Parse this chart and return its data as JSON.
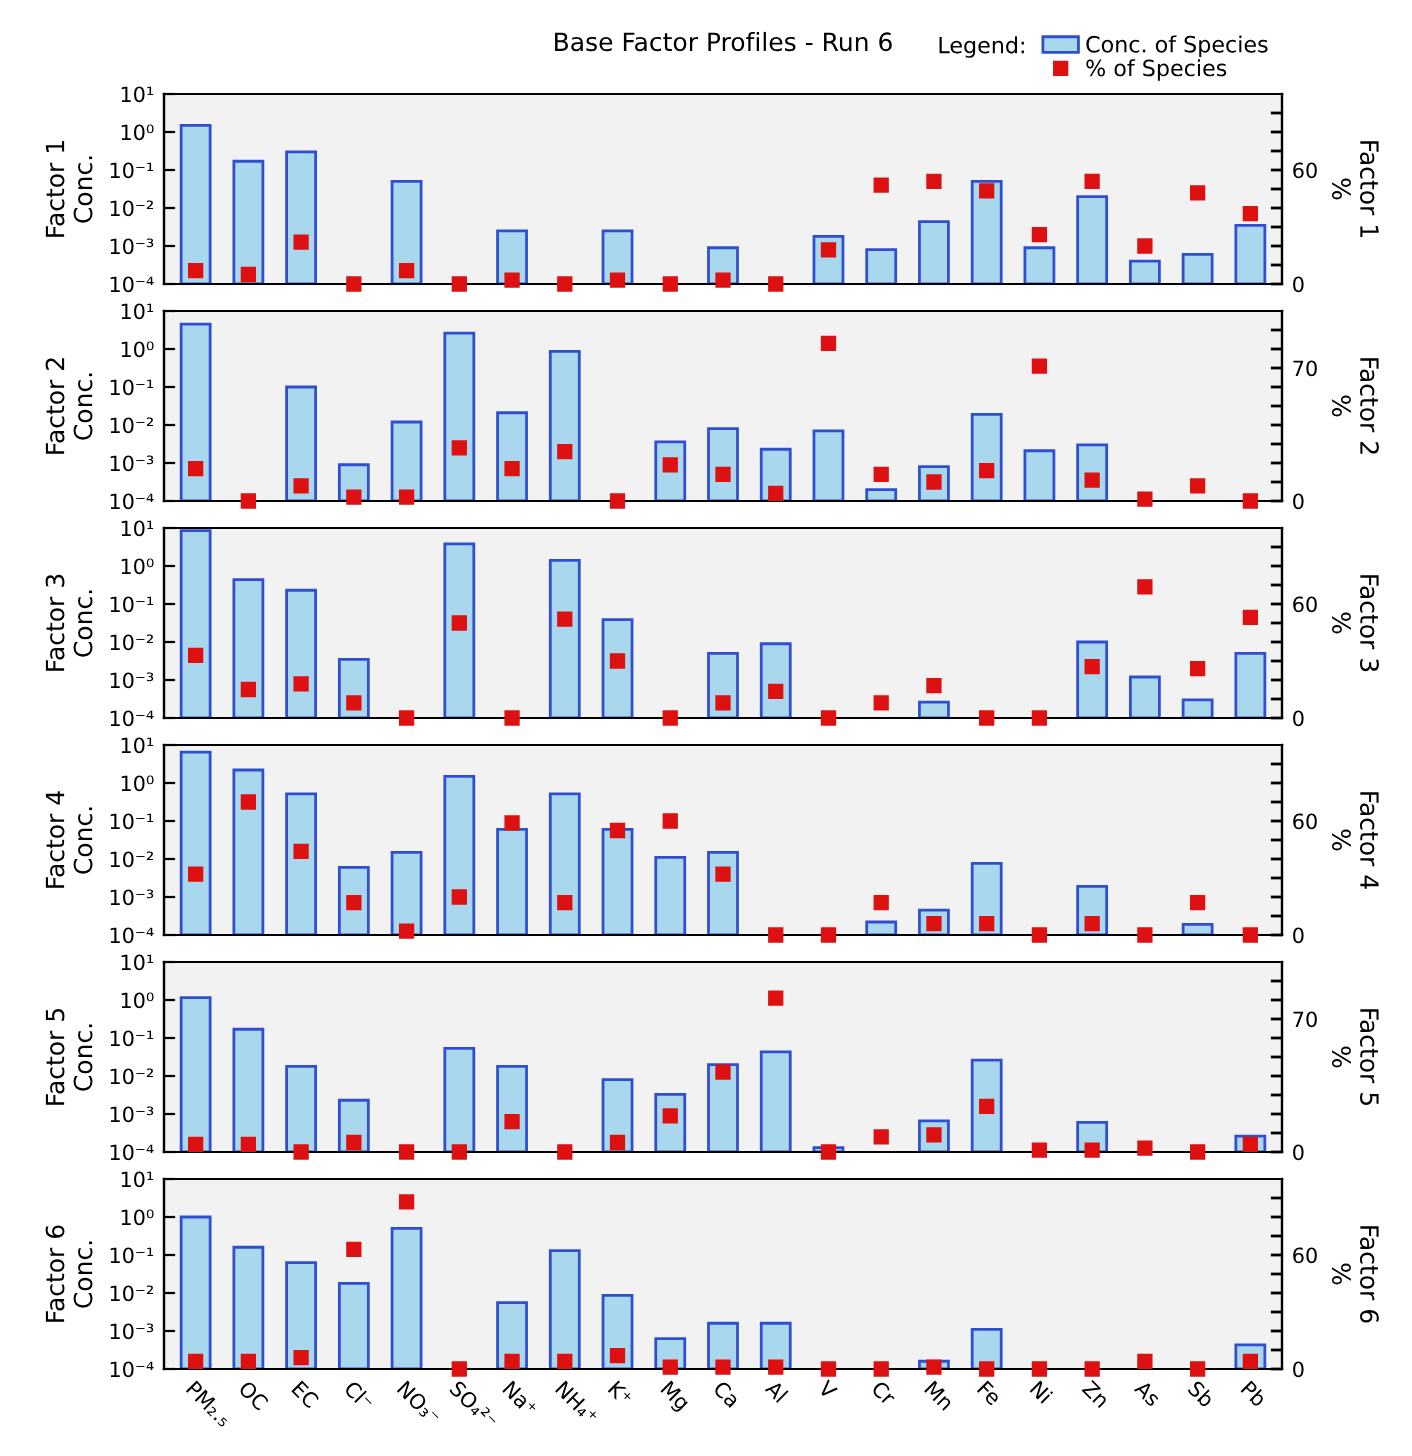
{
  "chart_data": [
    {
      "type": "bar",
      "title": "Base Factor Profiles - Run 6",
      "legend_title": "Legend:",
      "legend": "top right",
      "ylabel": "Factor 1\nConc.",
      "y2label": "Factor 1\n%",
      "log": "y",
      "categories": [
        null,
        null,
        null,
        null,
        null,
        null,
        null,
        null,
        null,
        null,
        null,
        null,
        null,
        null,
        null,
        null,
        null,
        null,
        null,
        null,
        null
      ],
      "ylim": [
        0.0001,
        10
      ],
      "yticks": [
        {
          "value": 0.0001,
          "label": "10⁻⁴"
        },
        {
          "value": 0.001,
          "label": "10⁻³"
        },
        {
          "value": 0.01,
          "label": "10⁻²"
        },
        {
          "value": 0.1,
          "label": "10⁻¹"
        },
        {
          "value": 1,
          "label": "10⁰"
        },
        {
          "value": 10,
          "label": "10¹"
        }
      ],
      "y2lim": [
        0,
        100
      ],
      "y2ticks": [
        0,
        {
          "value": 10,
          "label": null
        },
        {
          "value": 20,
          "label": null
        },
        {
          "value": 30,
          "label": null
        },
        {
          "value": 40,
          "label": null
        },
        {
          "value": 50,
          "label": null
        },
        60,
        {
          "value": 70,
          "label": null
        },
        {
          "value": 80,
          "label": null
        },
        {
          "value": 90,
          "label": null
        }
      ],
      "series": [
        {
          "name": "Conc. of Species",
          "color": "#a9d8ee",
          "values": [
            1.5,
            0.17,
            0.3,
            null,
            0.05,
            null,
            0.0025,
            null,
            0.0025,
            null,
            0.0009,
            null,
            0.0018,
            0.0008,
            0.0044,
            0.05,
            0.0009,
            0.02,
            0.0004,
            0.0006,
            0.0035
          ]
        },
        {
          "name": "% of Species",
          "type": "scatter",
          "axis": "y2",
          "marker": "square",
          "color": "#dd1111",
          "values": [
            7,
            5,
            22,
            0,
            7,
            0,
            2,
            0,
            2,
            0,
            2,
            0,
            18,
            52,
            54,
            49,
            26,
            54,
            20,
            48,
            37
          ]
        }
      ]
    },
    {
      "type": "bar",
      "ylabel": "Factor 2\nConc.",
      "y2label": "Factor 2\n%",
      "log": "y",
      "categories": [
        null,
        null,
        null,
        null,
        null,
        null,
        null,
        null,
        null,
        null,
        null,
        null,
        null,
        null,
        null,
        null,
        null,
        null,
        null,
        null,
        null
      ],
      "ylim": [
        0.0001,
        10
      ],
      "yticks": [
        {
          "value": 0.0001,
          "label": "10⁻⁴"
        },
        {
          "value": 0.001,
          "label": "10⁻³"
        },
        {
          "value": 0.01,
          "label": "10⁻²"
        },
        {
          "value": 0.1,
          "label": "10⁻¹"
        },
        {
          "value": 1,
          "label": "10⁰"
        },
        {
          "value": 10,
          "label": "10¹"
        }
      ],
      "y2lim": [
        0,
        100
      ],
      "y2ticks": [
        0,
        {
          "value": 10,
          "label": null
        },
        {
          "value": 20,
          "label": null
        },
        {
          "value": 30,
          "label": null
        },
        {
          "value": 40,
          "label": null
        },
        {
          "value": 50,
          "label": null
        },
        {
          "value": 60,
          "label": null
        },
        70,
        {
          "value": 80,
          "label": null
        },
        {
          "value": 90,
          "label": null
        }
      ],
      "series": [
        {
          "color": "#a9d8ee",
          "values": [
            4.5,
            null,
            0.1,
            0.0009,
            0.012,
            2.6,
            0.021,
            0.87,
            null,
            0.0036,
            0.008,
            0.0023,
            0.007,
            0.0002,
            0.0008,
            0.019,
            0.0021,
            0.003,
            null,
            null,
            null
          ]
        },
        {
          "type": "scatter",
          "axis": "y2",
          "marker": "square",
          "color": "#dd1111",
          "values": [
            17,
            0,
            8,
            2,
            2,
            28,
            17,
            26,
            0,
            19,
            14,
            4,
            83,
            14,
            10,
            16,
            71,
            11,
            1,
            8,
            0
          ]
        }
      ]
    },
    {
      "type": "bar",
      "ylabel": "Factor 3\nConc.",
      "y2label": "Factor 3\n%",
      "log": "y",
      "categories": [
        null,
        null,
        null,
        null,
        null,
        null,
        null,
        null,
        null,
        null,
        null,
        null,
        null,
        null,
        null,
        null,
        null,
        null,
        null,
        null,
        null
      ],
      "ylim": [
        0.0001,
        10
      ],
      "yticks": [
        {
          "value": 0.0001,
          "label": "10⁻⁴"
        },
        {
          "value": 0.001,
          "label": "10⁻³"
        },
        {
          "value": 0.01,
          "label": "10⁻²"
        },
        {
          "value": 0.1,
          "label": "10⁻¹"
        },
        {
          "value": 1,
          "label": "10⁰"
        },
        {
          "value": 10,
          "label": "10¹"
        }
      ],
      "y2lim": [
        0,
        100
      ],
      "y2ticks": [
        0,
        {
          "value": 10,
          "label": null
        },
        {
          "value": 20,
          "label": null
        },
        {
          "value": 30,
          "label": null
        },
        {
          "value": 40,
          "label": null
        },
        {
          "value": 50,
          "label": null
        },
        60,
        {
          "value": 70,
          "label": null
        },
        {
          "value": 80,
          "label": null
        },
        {
          "value": 90,
          "label": null
        }
      ],
      "series": [
        {
          "color": "#a9d8ee",
          "values": [
            8.5,
            0.44,
            0.23,
            0.0035,
            null,
            3.8,
            null,
            1.4,
            0.039,
            null,
            0.005,
            0.009,
            null,
            null,
            0.00026,
            null,
            null,
            0.01,
            0.0012,
            0.0003,
            0.005
          ]
        },
        {
          "type": "scatter",
          "axis": "y2",
          "marker": "square",
          "color": "#dd1111",
          "values": [
            33,
            15,
            18,
            8,
            0,
            50,
            0,
            52,
            30,
            0,
            8,
            14,
            0,
            8,
            17,
            0,
            0,
            27,
            69,
            26,
            53
          ]
        }
      ]
    },
    {
      "type": "bar",
      "ylabel": "Factor 4\nConc.",
      "y2label": "Factor 4\n%",
      "log": "y",
      "categories": [
        null,
        null,
        null,
        null,
        null,
        null,
        null,
        null,
        null,
        null,
        null,
        null,
        null,
        null,
        null,
        null,
        null,
        null,
        null,
        null,
        null
      ],
      "ylim": [
        0.0001,
        10
      ],
      "yticks": [
        {
          "value": 0.0001,
          "label": "10⁻⁴"
        },
        {
          "value": 0.001,
          "label": "10⁻³"
        },
        {
          "value": 0.01,
          "label": "10⁻²"
        },
        {
          "value": 0.1,
          "label": "10⁻¹"
        },
        {
          "value": 1,
          "label": "10⁰"
        },
        {
          "value": 10,
          "label": "10¹"
        }
      ],
      "y2lim": [
        0,
        100
      ],
      "y2ticks": [
        0,
        {
          "value": 10,
          "label": null
        },
        {
          "value": 20,
          "label": null
        },
        {
          "value": 30,
          "label": null
        },
        {
          "value": 40,
          "label": null
        },
        {
          "value": 50,
          "label": null
        },
        60,
        {
          "value": 70,
          "label": null
        },
        {
          "value": 80,
          "label": null
        },
        {
          "value": 90,
          "label": null
        }
      ],
      "series": [
        {
          "color": "#a9d8ee",
          "values": [
            6.5,
            2.2,
            0.52,
            0.006,
            0.015,
            1.5,
            0.06,
            0.52,
            0.06,
            0.011,
            0.015,
            null,
            null,
            0.00022,
            0.00045,
            0.0077,
            null,
            0.0019,
            null,
            0.00019,
            null
          ]
        },
        {
          "type": "scatter",
          "axis": "y2",
          "marker": "square",
          "color": "#dd1111",
          "values": [
            32,
            70,
            44,
            17,
            2,
            20,
            59,
            17,
            55,
            60,
            32,
            0,
            0,
            17,
            6,
            6,
            0,
            6,
            0,
            17,
            0
          ]
        }
      ]
    },
    {
      "type": "bar",
      "ylabel": "Factor 5\nConc.",
      "y2label": "Factor 5\n%",
      "log": "y",
      "categories": [
        null,
        null,
        null,
        null,
        null,
        null,
        null,
        null,
        null,
        null,
        null,
        null,
        null,
        null,
        null,
        null,
        null,
        null,
        null,
        null,
        null
      ],
      "ylim": [
        0.0001,
        10
      ],
      "yticks": [
        {
          "value": 0.0001,
          "label": "10⁻⁴"
        },
        {
          "value": 0.001,
          "label": "10⁻³"
        },
        {
          "value": 0.01,
          "label": "10⁻²"
        },
        {
          "value": 0.1,
          "label": "10⁻¹"
        },
        {
          "value": 1,
          "label": "10⁰"
        },
        {
          "value": 10,
          "label": "10¹"
        }
      ],
      "y2lim": [
        0,
        100
      ],
      "y2ticks": [
        0,
        {
          "value": 10,
          "label": null
        },
        {
          "value": 20,
          "label": null
        },
        {
          "value": 30,
          "label": null
        },
        {
          "value": 40,
          "label": null
        },
        {
          "value": 50,
          "label": null
        },
        {
          "value": 60,
          "label": null
        },
        70,
        {
          "value": 80,
          "label": null
        },
        {
          "value": 90,
          "label": null
        }
      ],
      "series": [
        {
          "color": "#a9d8ee",
          "values": [
            1.15,
            0.17,
            0.018,
            0.0023,
            null,
            0.053,
            0.018,
            null,
            0.008,
            0.0033,
            0.02,
            0.043,
            0.00013,
            null,
            0.00066,
            0.026,
            null,
            0.0006,
            null,
            null,
            0.00026
          ]
        },
        {
          "type": "scatter",
          "axis": "y2",
          "marker": "square",
          "color": "#dd1111",
          "values": [
            4,
            4,
            0,
            5,
            0,
            0,
            16,
            0,
            5,
            19,
            42,
            81,
            0,
            8,
            9,
            24,
            1,
            1,
            2,
            0,
            4
          ]
        }
      ]
    },
    {
      "type": "bar",
      "ylabel": "Factor 6\nConc.",
      "y2label": "Factor 6\n%",
      "log": "y",
      "categories": [
        "PM₂.₅",
        "OC",
        "EC",
        "Cl⁻",
        "NO₃⁻",
        "SO₄²⁻",
        "Na⁺",
        "NH₄⁺",
        "K⁺",
        "Mg",
        "Ca",
        "Al",
        "V",
        "Cr",
        "Mn",
        "Fe",
        "Ni",
        "Zn",
        "As",
        "Sb",
        "Pb"
      ],
      "ylim": [
        0.0001,
        10
      ],
      "yticks": [
        {
          "value": 0.0001,
          "label": "10⁻⁴"
        },
        {
          "value": 0.001,
          "label": "10⁻³"
        },
        {
          "value": 0.01,
          "label": "10⁻²"
        },
        {
          "value": 0.1,
          "label": "10⁻¹"
        },
        {
          "value": 1,
          "label": "10⁰"
        },
        {
          "value": 10,
          "label": "10¹"
        }
      ],
      "y2lim": [
        0,
        100
      ],
      "y2ticks": [
        0,
        {
          "value": 10,
          "label": null
        },
        {
          "value": 20,
          "label": null
        },
        {
          "value": 30,
          "label": null
        },
        {
          "value": 40,
          "label": null
        },
        {
          "value": 50,
          "label": null
        },
        60,
        {
          "value": 70,
          "label": null
        },
        {
          "value": 80,
          "label": null
        },
        {
          "value": 90,
          "label": null
        }
      ],
      "series": [
        {
          "color": "#a9d8ee",
          "values": [
            1.0,
            0.16,
            0.063,
            0.018,
            0.5,
            null,
            0.0056,
            0.13,
            0.0087,
            0.00063,
            0.0016,
            0.0016,
            null,
            null,
            0.00016,
            0.0011,
            null,
            null,
            null,
            null,
            0.00043
          ]
        },
        {
          "type": "scatter",
          "axis": "y2",
          "marker": "square",
          "color": "#dd1111",
          "values": [
            4,
            4,
            6,
            63,
            88,
            0,
            4,
            4,
            7,
            1,
            1,
            1,
            0,
            0,
            1,
            0,
            0,
            0,
            4,
            0,
            4
          ]
        }
      ]
    }
  ]
}
